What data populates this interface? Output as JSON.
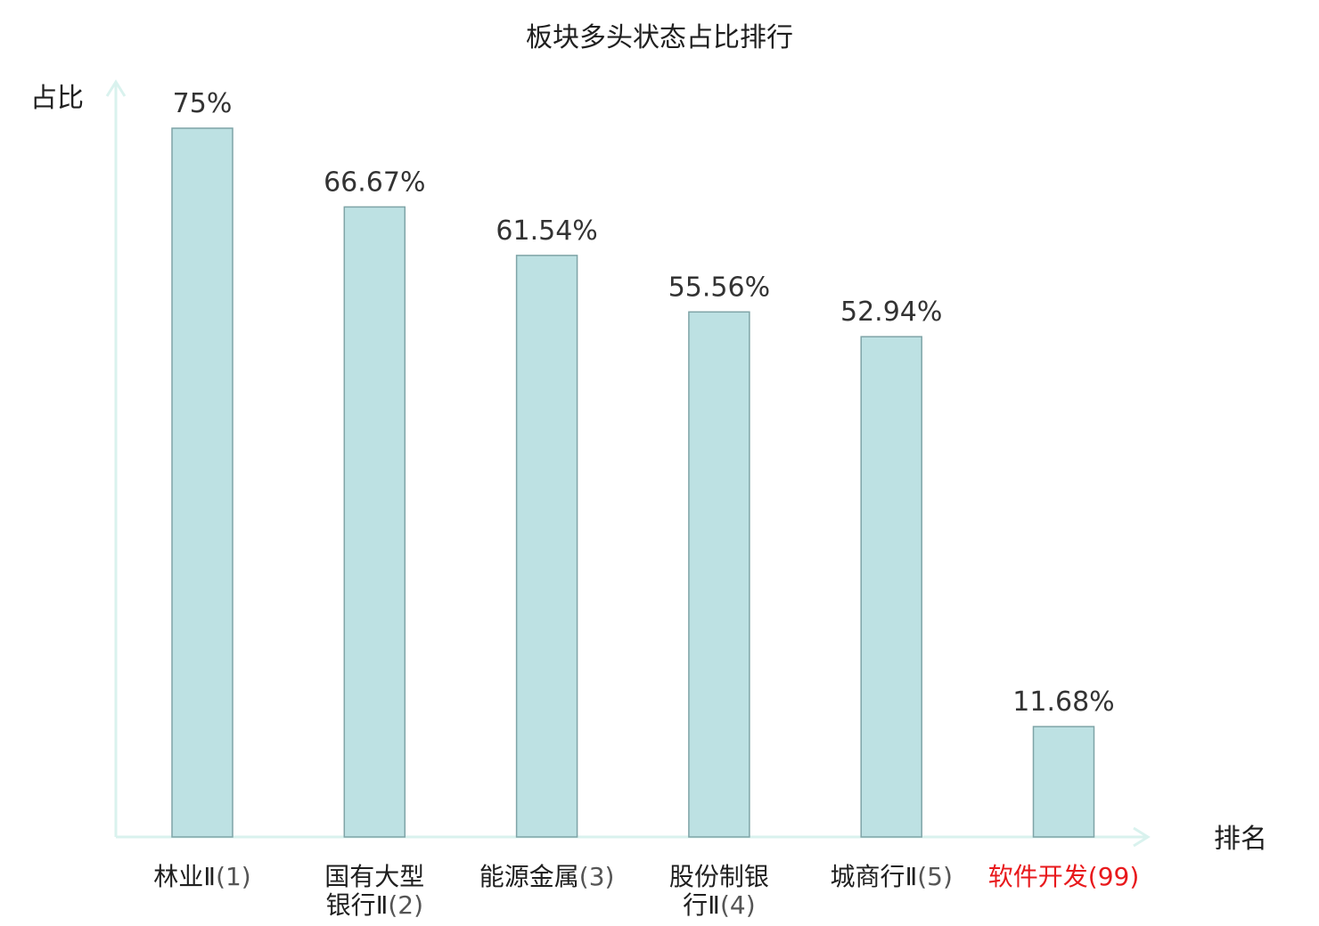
{
  "chart_data": {
    "type": "bar",
    "title": "板块多头状态占比排行",
    "ylabel": "占比",
    "xlabel": "排名",
    "categories": [
      {
        "name": "林业Ⅱ",
        "lines": [
          "林业Ⅱ"
        ],
        "rank": "(1)"
      },
      {
        "name": "国有大型银行Ⅱ",
        "lines": [
          "国有大型",
          "银行Ⅱ"
        ],
        "rank": "(2)"
      },
      {
        "name": "能源金属",
        "lines": [
          "能源金属"
        ],
        "rank": "(3)"
      },
      {
        "name": "股份制银行Ⅱ",
        "lines": [
          "股份制银",
          "行Ⅱ"
        ],
        "rank": "(4)"
      },
      {
        "name": "城商行Ⅱ",
        "lines": [
          "城商行Ⅱ"
        ],
        "rank": "(5)"
      },
      {
        "name": "软件开发",
        "lines": [
          "软件开发"
        ],
        "rank": "(99)",
        "highlight": true
      }
    ],
    "values": [
      75,
      66.67,
      61.54,
      55.56,
      52.94,
      11.68
    ],
    "value_labels": [
      "75%",
      "66.67%",
      "61.54%",
      "55.56%",
      "52.94%",
      "11.68%"
    ],
    "ylim": [
      0,
      80
    ],
    "grid": false,
    "legend": "none",
    "colors": {
      "bar_fill": "#bde1e3",
      "bar_stroke": "#7fa4a7",
      "axis": "#d9f2ee",
      "text": "#1f1f1f",
      "rank_text": "#555555",
      "highlight": "#e8191c"
    }
  }
}
